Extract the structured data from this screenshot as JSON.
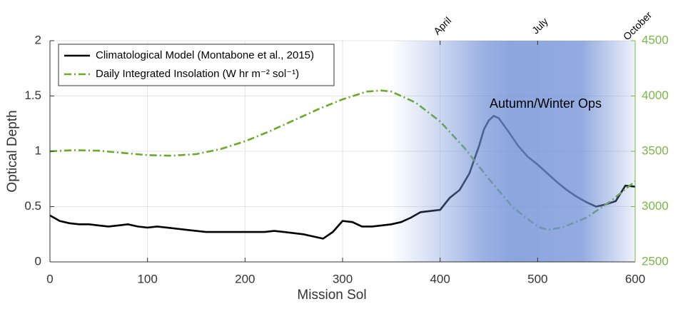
{
  "chart_data": {
    "type": "line",
    "xlabel": "Mission Sol",
    "ylabel": "Optical Depth",
    "xlim": [
      0,
      600
    ],
    "xticks": [
      0,
      100,
      200,
      300,
      400,
      500,
      600
    ],
    "ylim": [
      0,
      2
    ],
    "yticks": [
      0,
      0.5,
      1,
      1.5,
      2
    ],
    "y2lim": [
      2500,
      4500
    ],
    "y2ticks": [
      2500,
      3000,
      3500,
      4000,
      4500
    ],
    "y2color": "#7ab648",
    "grid": true,
    "legend": "upper left",
    "top_ticks": [
      {
        "value": 400,
        "label": "April"
      },
      {
        "value": 500,
        "label": "July"
      },
      {
        "value": 600,
        "label": "October"
      }
    ],
    "highlight": {
      "xlim": [
        350,
        600
      ],
      "color": "#6f8fd6",
      "label": "Autumn/Winter Ops"
    },
    "series": [
      {
        "name": "Climatological Model (Montabone et al., 2015)",
        "color": "#000000",
        "style": "solid",
        "x": [
          0,
          10,
          20,
          30,
          40,
          50,
          60,
          70,
          80,
          90,
          100,
          110,
          120,
          130,
          140,
          150,
          160,
          170,
          180,
          190,
          200,
          210,
          220,
          230,
          240,
          250,
          260,
          270,
          280,
          290,
          300,
          310,
          320,
          330,
          340,
          350,
          360,
          370,
          380,
          390,
          400,
          410,
          420,
          430,
          440,
          445,
          450,
          455,
          460,
          470,
          480,
          490,
          500,
          510,
          520,
          530,
          540,
          550,
          560,
          570,
          580,
          590,
          600
        ],
        "values": [
          0.42,
          0.37,
          0.35,
          0.34,
          0.34,
          0.33,
          0.32,
          0.33,
          0.34,
          0.32,
          0.31,
          0.32,
          0.31,
          0.3,
          0.29,
          0.28,
          0.27,
          0.27,
          0.27,
          0.27,
          0.27,
          0.27,
          0.27,
          0.28,
          0.27,
          0.26,
          0.25,
          0.23,
          0.21,
          0.27,
          0.37,
          0.36,
          0.32,
          0.32,
          0.33,
          0.34,
          0.36,
          0.4,
          0.45,
          0.46,
          0.47,
          0.58,
          0.65,
          0.8,
          1.05,
          1.2,
          1.28,
          1.32,
          1.3,
          1.18,
          1.05,
          0.95,
          0.88,
          0.8,
          0.72,
          0.65,
          0.59,
          0.54,
          0.5,
          0.52,
          0.55,
          0.69,
          0.68
        ]
      },
      {
        "name": "Daily Integrated Insolation (W hr m⁻² sol⁻¹)",
        "color": "#6aaa2a",
        "style": "dashdot",
        "axis": "y2",
        "x": [
          0,
          25,
          50,
          75,
          100,
          125,
          150,
          175,
          200,
          225,
          250,
          275,
          300,
          325,
          340,
          350,
          375,
          400,
          425,
          450,
          475,
          500,
          510,
          525,
          550,
          575,
          600
        ],
        "values": [
          3500,
          3510,
          3505,
          3485,
          3465,
          3460,
          3475,
          3520,
          3590,
          3680,
          3780,
          3880,
          3970,
          4040,
          4050,
          4040,
          3940,
          3770,
          3530,
          3250,
          2990,
          2820,
          2790,
          2810,
          2900,
          3050,
          3230
        ]
      }
    ]
  }
}
